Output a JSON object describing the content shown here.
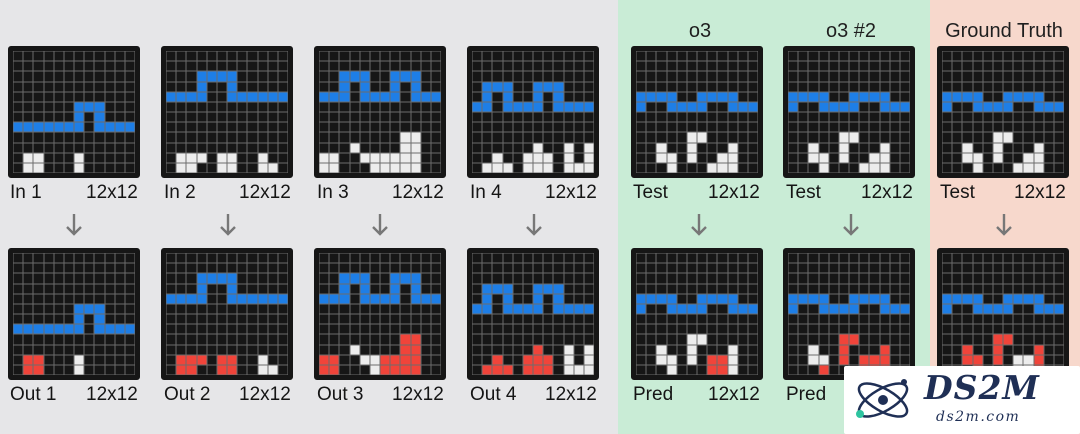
{
  "headers": {
    "o3": "o3",
    "o3_2": "o3 #2",
    "ground_truth": "Ground Truth"
  },
  "colors": {
    "0": "#161616",
    "1": "#1e7ee6",
    "2": "#f0443a",
    "5": "#ececec"
  },
  "columns": [
    {
      "id": "ex1",
      "in_label": "In 1",
      "in_size": "12x12",
      "out_label": "Out 1",
      "out_size": "12x12",
      "in_grid": [
        "000000000000",
        "000000000000",
        "000000000000",
        "000000000000",
        "000000000000",
        "000000111000",
        "000000101000",
        "111111101111",
        "000000000000",
        "000000000000",
        "055000500000",
        "055000500000"
      ],
      "out_grid": [
        "000000000000",
        "000000000000",
        "000000000000",
        "000000000000",
        "000000000000",
        "000000111000",
        "000000101000",
        "111111101111",
        "000000000000",
        "000000000000",
        "022000500000",
        "022000500000"
      ]
    },
    {
      "id": "ex2",
      "in_label": "In 2",
      "in_size": "12x12",
      "out_label": "Out 2",
      "out_size": "12x12",
      "in_grid": [
        "000000000000",
        "000000000000",
        "000111100000",
        "000100100000",
        "111100111111",
        "000000000000",
        "000000000000",
        "000000000000",
        "000000000000",
        "000000000000",
        "055505500500",
        "055005500550"
      ],
      "out_grid": [
        "000000000000",
        "000000000000",
        "000111100000",
        "000100100000",
        "111100111111",
        "000000000000",
        "000000000000",
        "000000000000",
        "000000000000",
        "000000000000",
        "022202200500",
        "022002200550"
      ]
    },
    {
      "id": "ex3",
      "in_label": "In 3",
      "in_size": "12x12",
      "out_label": "Out 3",
      "out_size": "12x12",
      "in_grid": [
        "000000000000",
        "000000000000",
        "001110011100",
        "001010010100",
        "111011110111",
        "000000000000",
        "000000000000",
        "000000000000",
        "000000005500",
        "000500005500",
        "550055555500",
        "550005555500"
      ],
      "out_grid": [
        "000000000000",
        "000000000000",
        "001110011100",
        "001010010100",
        "111011110111",
        "000000000000",
        "000000000000",
        "000000000000",
        "000000002200",
        "000500002200",
        "220055222200",
        "220005222200"
      ]
    },
    {
      "id": "ex4",
      "in_label": "In 4",
      "in_size": "12x12",
      "out_label": "Out 4",
      "out_size": "12x12",
      "in_grid": [
        "000000000000",
        "000000000000",
        "000000000000",
        "011100111000",
        "010100101000",
        "110111101111",
        "000000000000",
        "000000000000",
        "000000000000",
        "000000500505",
        "005005550505",
        "055505550555"
      ],
      "out_grid": [
        "000000000000",
        "000000000000",
        "000000000000",
        "011100111000",
        "010100101000",
        "110111101111",
        "000000000000",
        "000000000000",
        "000000000000",
        "000000200505",
        "002002220505",
        "022202220555"
      ]
    },
    {
      "id": "o3",
      "in_label": "Test",
      "in_size": "12x12",
      "out_label": "Pred",
      "out_size": "12x12",
      "in_grid": [
        "000000000000",
        "000000000000",
        "000000000000",
        "000000000000",
        "111100111100",
        "100111100111",
        "000000000000",
        "000000000000",
        "000005500000",
        "005005000500",
        "005505005500",
        "000500055500"
      ],
      "out_grid": [
        "000000000000",
        "000000000000",
        "000000000000",
        "000000000000",
        "111100111100",
        "100111100111",
        "000000000000",
        "000000000000",
        "000005500000",
        "005005000500",
        "005505022500",
        "000500022500"
      ]
    },
    {
      "id": "o3_2",
      "in_label": "Test",
      "in_size": "12x12",
      "out_label": "Pred",
      "out_size": "12x12",
      "in_grid": [
        "000000000000",
        "000000000000",
        "000000000000",
        "000000000000",
        "111100111100",
        "100111100111",
        "000000000000",
        "000000000000",
        "000005500000",
        "005005000500",
        "005505005500",
        "000500055500"
      ],
      "out_grid": [
        "000000000000",
        "000000000000",
        "000000000000",
        "000000000000",
        "111100111100",
        "100111100111",
        "000000000000",
        "000000000000",
        "000002200000",
        "005002000200",
        "005502022200",
        "000200022200"
      ]
    },
    {
      "id": "truth",
      "in_label": "Test",
      "in_size": "12x12",
      "out_label": "",
      "out_size": "",
      "in_grid": [
        "000000000000",
        "000000000000",
        "000000000000",
        "000000000000",
        "111100111100",
        "100111100111",
        "000000000000",
        "000000000000",
        "000005500000",
        "005005000500",
        "005505005500",
        "000500055500"
      ],
      "out_grid": [
        "000000000000",
        "000000000000",
        "000000000000",
        "000000000000",
        "111100111100",
        "100111100111",
        "000000000000",
        "000000000000",
        "000002200000",
        "002002000200",
        "002202055200",
        "000200055200"
      ]
    }
  ],
  "watermark": {
    "title": "DS2M",
    "url": "ds2m.com"
  }
}
